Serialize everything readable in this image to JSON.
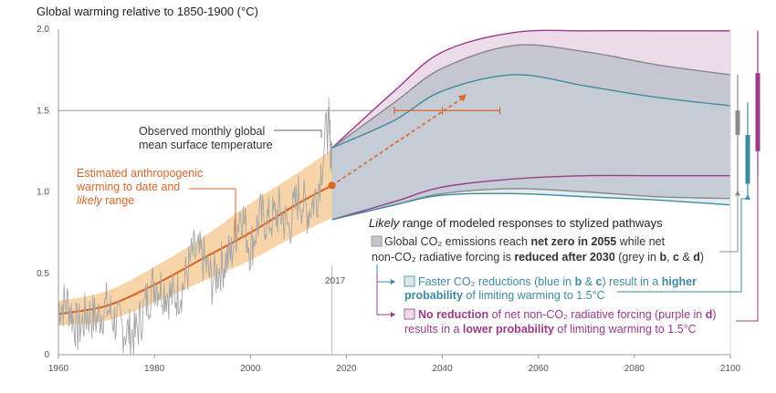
{
  "chart_data": {
    "type": "line",
    "title": "Global warming relative to 1850-1900 (°C)",
    "xlim": [
      1960,
      2100
    ],
    "ylim": [
      0,
      2.0
    ],
    "x_ticks": [
      "1960",
      "1980",
      "2000",
      "2020",
      "2040",
      "2060",
      "2080",
      "2100"
    ],
    "y_ticks": [
      "0",
      "0.5",
      "1.0",
      "1.5",
      "2.0"
    ],
    "x_tick_values": [
      1960,
      1980,
      2000,
      2020,
      2040,
      2060,
      2080,
      2100
    ],
    "y_tick_values": [
      0,
      0.5,
      1.0,
      1.5,
      2.0
    ],
    "marker_label": "2017",
    "observed_label": [
      "Observed monthly global",
      "mean surface temperature"
    ],
    "anthro_label": [
      "Estimated anthropogenic",
      "warming to date and",
      "likely",
      " range"
    ],
    "anthropogenic": {
      "x": [
        1960,
        1970,
        1980,
        1990,
        2000,
        2010,
        2017
      ],
      "y": [
        0.25,
        0.3,
        0.43,
        0.59,
        0.75,
        0.93,
        1.04
      ],
      "band_lower": [
        0.18,
        0.21,
        0.32,
        0.45,
        0.58,
        0.74,
        0.84
      ],
      "band_upper": [
        0.33,
        0.39,
        0.54,
        0.72,
        0.93,
        1.12,
        1.26
      ]
    },
    "observed_monthly": {
      "x": [
        1960,
        1962,
        1964,
        1966,
        1968,
        1970,
        1972,
        1974,
        1976,
        1978,
        1980,
        1982,
        1984,
        1986,
        1988,
        1990,
        1992,
        1994,
        1996,
        1998,
        2000,
        2002,
        2004,
        2006,
        2008,
        2010,
        2012,
        2014,
        2016,
        2017
      ],
      "y": [
        0.3,
        0.32,
        0.15,
        0.25,
        0.22,
        0.3,
        0.2,
        0.15,
        0.12,
        0.3,
        0.45,
        0.4,
        0.35,
        0.42,
        0.62,
        0.6,
        0.45,
        0.55,
        0.62,
        0.9,
        0.65,
        0.85,
        0.82,
        0.88,
        0.78,
        0.98,
        0.88,
        1.0,
        1.4,
        1.25
      ]
    },
    "projection": {
      "x": [
        2017,
        2030,
        2040,
        2055,
        2070,
        2085,
        2100
      ],
      "purple_upper": [
        1.27,
        1.62,
        1.86,
        1.98,
        1.99,
        1.99,
        1.99
      ],
      "grey_upper": [
        1.27,
        1.55,
        1.76,
        1.9,
        1.86,
        1.78,
        1.72
      ],
      "blue_upper": [
        1.27,
        1.44,
        1.62,
        1.72,
        1.65,
        1.58,
        1.53
      ],
      "purple_lower": [
        0.83,
        0.94,
        1.03,
        1.08,
        1.1,
        1.1,
        1.1
      ],
      "grey_lower": [
        0.83,
        0.92,
        0.99,
        1.02,
        1.0,
        0.97,
        0.96
      ],
      "blue_lower": [
        0.83,
        0.92,
        0.98,
        0.99,
        0.97,
        0.95,
        0.92
      ]
    },
    "arrow": {
      "x0": 2017,
      "y0": 1.04,
      "x1": 2045,
      "y1": 1.6
    },
    "range_bar": {
      "x_min": 2030,
      "x_max": 2052,
      "x_center": 2040,
      "y": 1.5
    },
    "side_bars": [
      {
        "name": "grey",
        "low": 1.35,
        "high": 1.5,
        "whisker_low": 1.0,
        "whisker_high": 1.72,
        "color": "#8c8c8c"
      },
      {
        "name": "blue",
        "low": 1.05,
        "high": 1.35,
        "whisker_low": 0.97,
        "whisker_high": 1.55,
        "color": "#3e8aa1"
      },
      {
        "name": "purple",
        "low": 1.25,
        "high": 1.73,
        "whisker_low": 1.1,
        "whisker_high": 1.99,
        "color": "#9b3a8a"
      }
    ]
  },
  "colors": {
    "orange": "#d9662b",
    "orange_band": "#f6c58c",
    "observed": "#a6a6a6",
    "grey_fill": "#c5c7d0",
    "blue_fill": "#dde8ec",
    "purple_fill": "#ecdbe9",
    "blue_line": "#3e8aa1",
    "purple_line": "#9b3a8a",
    "grey_line": "#888888"
  },
  "legend": {
    "heading_italic": "Likely",
    "heading_rest": " range of modeled responses to stylized pathways",
    "grey_line1_a": "Global CO₂ emissions reach ",
    "grey_line1_b": "net zero in 2055",
    "grey_line1_c": " while net",
    "grey_line2_a": "non-CO₂ radiative forcing is ",
    "grey_line2_b": "reduced after 2030",
    "grey_line2_c": " (grey in ",
    "grey_line2_d": "b",
    "grey_line2_e": ", ",
    "grey_line2_f": "c",
    "grey_line2_g": " & ",
    "grey_line2_h": "d",
    "grey_line2_i": ")",
    "blue_line1_a": "Faster CO₂ reductions (blue in ",
    "blue_line1_b": "b",
    "blue_line1_c": " & ",
    "blue_line1_d": "c",
    "blue_line1_e": ") result in a ",
    "blue_line1_f": "higher",
    "blue_line2_a": "probability",
    "blue_line2_b": " of limiting warming to 1.5°C",
    "purple_line1_a": "No reduction",
    "purple_line1_b": " of net non-CO₂ radiative forcing (purple in ",
    "purple_line1_c": "d",
    "purple_line1_d": ")",
    "purple_line2_a": "results in a ",
    "purple_line2_b": "lower probability",
    "purple_line2_c": " of limiting warming to 1.5°C"
  }
}
